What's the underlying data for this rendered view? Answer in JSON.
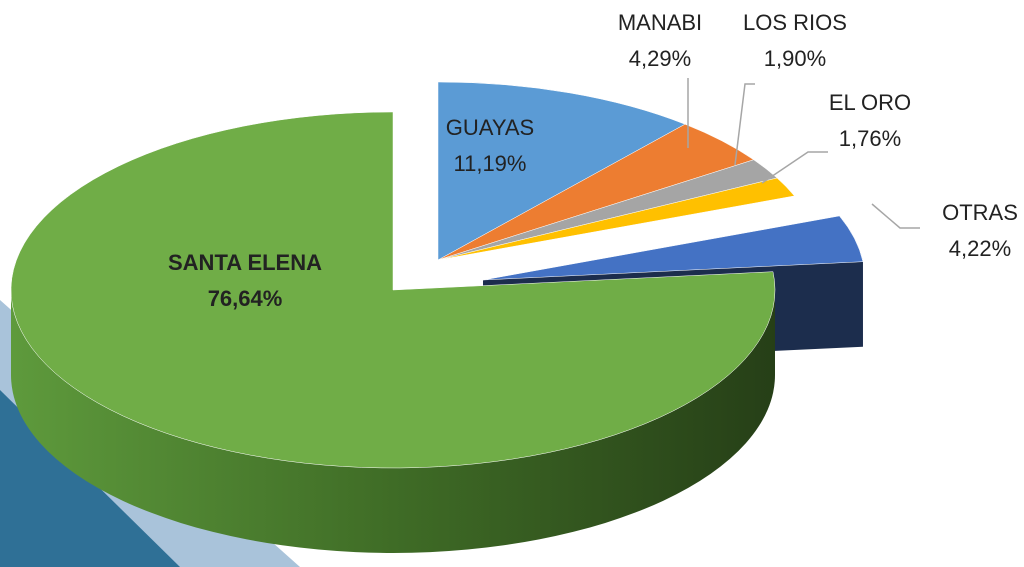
{
  "chart_data": {
    "type": "pie",
    "categories": [
      "GUAYAS",
      "MANABI",
      "LOS RIOS",
      "EL ORO",
      "OTRAS",
      "SANTA ELENA"
    ],
    "values": [
      11.19,
      4.29,
      1.9,
      1.76,
      4.22,
      76.64
    ],
    "value_labels": [
      "11,19%",
      "4,29%",
      "1,90%",
      "1,76%",
      "4,22%",
      "76,64%"
    ],
    "colors": [
      "#5b9bd5",
      "#ed7d31",
      "#a5a5a5",
      "#ffc000",
      "#4472c4",
      "#70ad47"
    ]
  }
}
